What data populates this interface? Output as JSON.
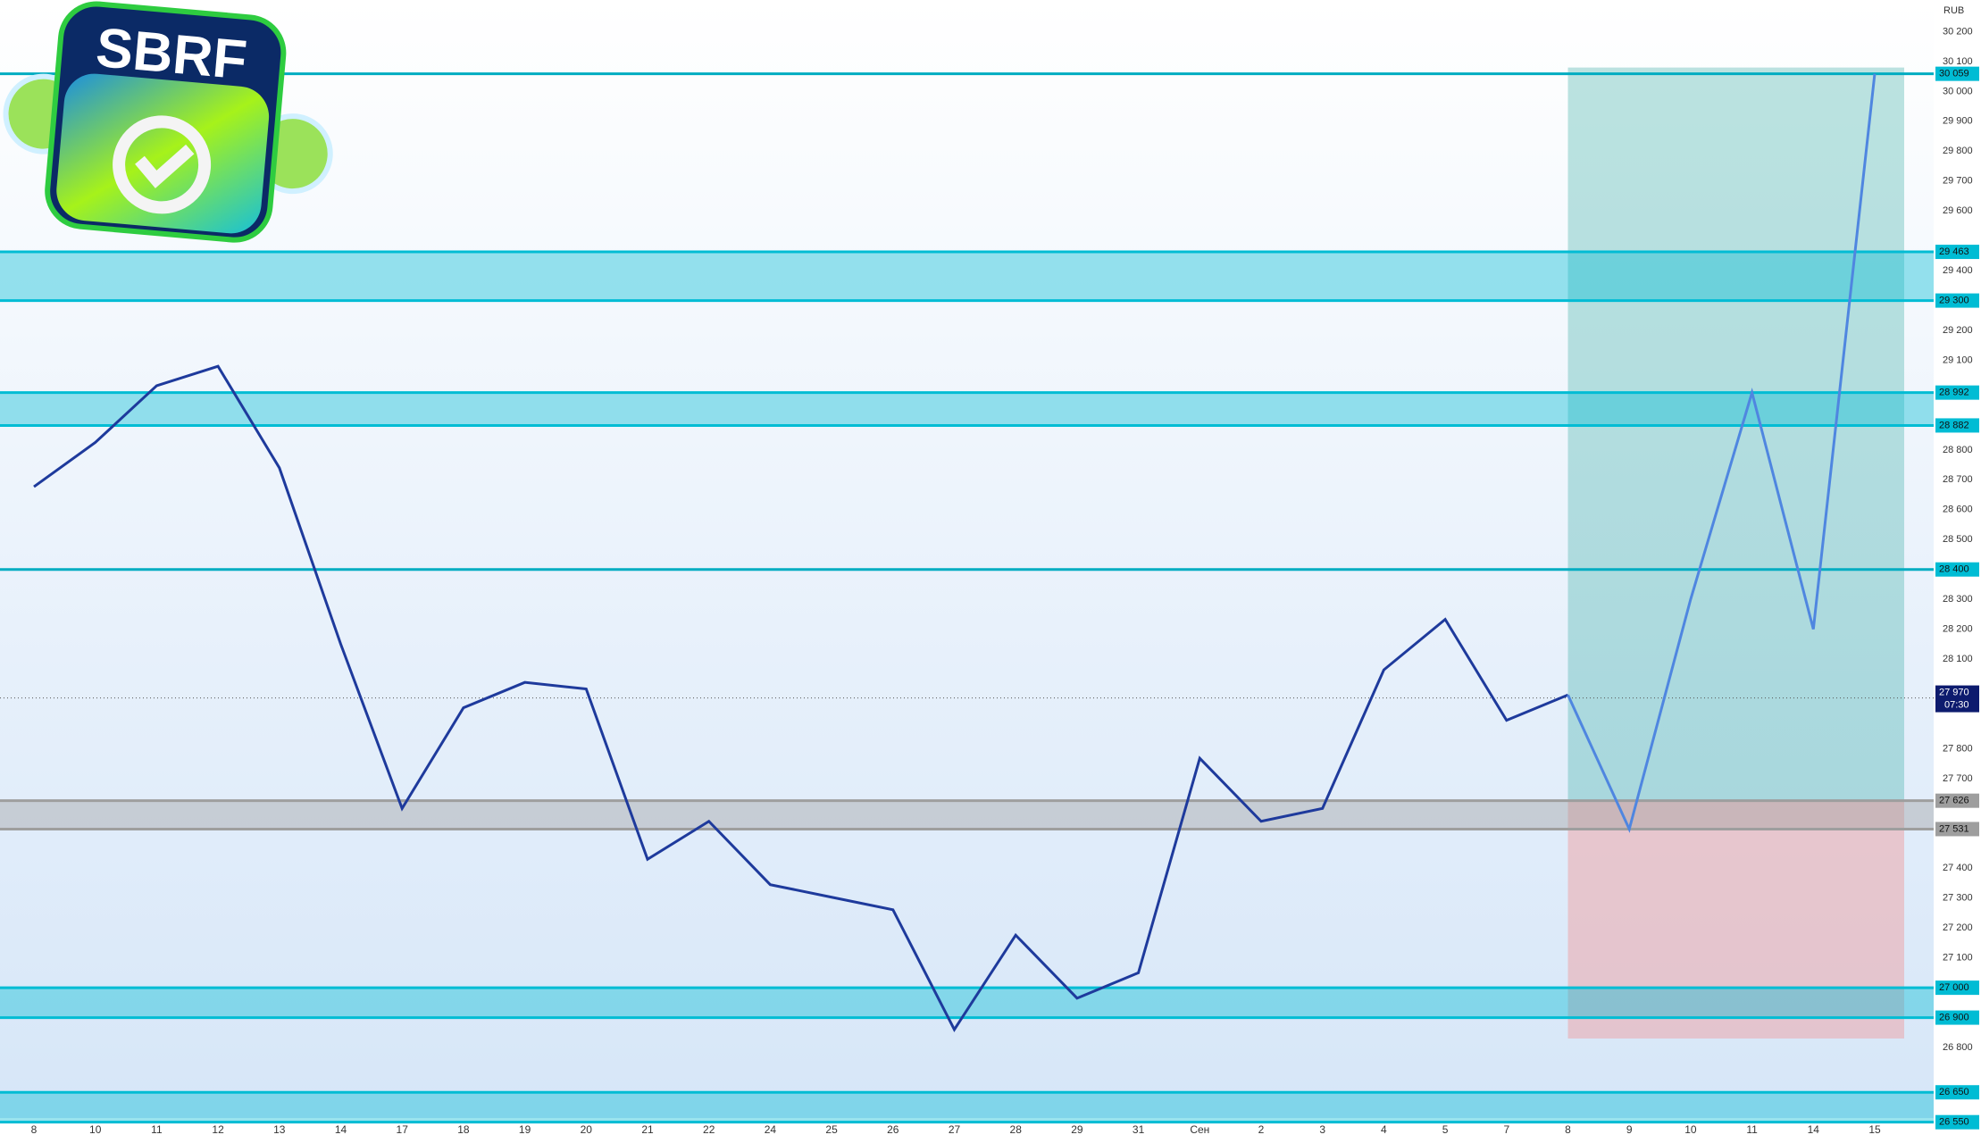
{
  "logo": "SBRF",
  "chart_data": {
    "type": "line",
    "currency": "RUB",
    "categories": [
      "8",
      "10",
      "11",
      "12",
      "13",
      "14",
      "17",
      "18",
      "19",
      "20",
      "21",
      "22",
      "24",
      "25",
      "26",
      "27",
      "28",
      "29",
      "31",
      "Сен",
      "2",
      "3",
      "4",
      "5",
      "7",
      "8",
      "9",
      "10",
      "11",
      "14",
      "15"
    ],
    "series": [
      {
        "color": "#1e3a9c",
        "values": [
          28677,
          28825,
          29015,
          29080,
          28740,
          28150,
          27600,
          27937,
          28022,
          28000,
          27430,
          27557,
          27345,
          27303,
          27261,
          26860,
          27176,
          26965,
          27050,
          27768,
          27557,
          27600,
          28064,
          28233,
          27895,
          27980,
          null,
          null,
          null,
          null,
          null
        ]
      },
      {
        "color": "#4f86e0",
        "values": [
          null,
          null,
          null,
          null,
          null,
          null,
          null,
          null,
          null,
          null,
          null,
          null,
          null,
          null,
          null,
          null,
          null,
          null,
          null,
          null,
          null,
          null,
          null,
          null,
          null,
          27980,
          27531,
          28300,
          28992,
          28200,
          30059
        ]
      }
    ],
    "ylim": [
      26564,
      30306
    ],
    "yticks": [
      {
        "value": 26800,
        "label": "26 800"
      },
      {
        "value": 27100,
        "label": "27 100"
      },
      {
        "value": 27200,
        "label": "27 200"
      },
      {
        "value": 27300,
        "label": "27 300"
      },
      {
        "value": 27400,
        "label": "27 400"
      },
      {
        "value": 27700,
        "label": "27 700"
      },
      {
        "value": 27800,
        "label": "27 800"
      },
      {
        "value": 28100,
        "label": "28 100"
      },
      {
        "value": 28200,
        "label": "28 200"
      },
      {
        "value": 28300,
        "label": "28 300"
      },
      {
        "value": 28500,
        "label": "28 500"
      },
      {
        "value": 28600,
        "label": "28 600"
      },
      {
        "value": 28700,
        "label": "28 700"
      },
      {
        "value": 28800,
        "label": "28 800"
      },
      {
        "value": 29100,
        "label": "29 100"
      },
      {
        "value": 29200,
        "label": "29 200"
      },
      {
        "value": 29400,
        "label": "29 400"
      },
      {
        "value": 29600,
        "label": "29 600"
      },
      {
        "value": 29700,
        "label": "29 700"
      },
      {
        "value": 29800,
        "label": "29 800"
      },
      {
        "value": 29900,
        "label": "29 900"
      },
      {
        "value": 30000,
        "label": "30 000"
      },
      {
        "value": 30100,
        "label": "30 100"
      },
      {
        "value": 30200,
        "label": "30 200"
      }
    ],
    "levels": [
      {
        "value": 30059,
        "label": "30 059"
      },
      {
        "value": 28400,
        "label": "28 400"
      }
    ],
    "zones": [
      {
        "color": "#00bcd4",
        "top": {
          "value": 29463,
          "label": "29 463"
        },
        "bottom": {
          "value": 29300,
          "label": "29 300"
        }
      },
      {
        "color": "#00bcd4",
        "top": {
          "value": 28992,
          "label": "28 992"
        },
        "bottom": {
          "value": 28882,
          "label": "28 882"
        }
      },
      {
        "color": "#9e9e9e",
        "top": {
          "value": 27626,
          "label": "27 626"
        },
        "bottom": {
          "value": 27531,
          "label": "27 531"
        }
      },
      {
        "color": "#00bcd4",
        "top": {
          "value": 27000,
          "label": "27 000"
        },
        "bottom": {
          "value": 26900,
          "label": "26 900"
        }
      },
      {
        "color": "#00bcd4",
        "top": {
          "value": 26650,
          "label": "26 650"
        },
        "bottom": {
          "value": 26550,
          "label": "26 550"
        }
      }
    ],
    "position": {
      "target": 30080,
      "entry": 27626,
      "stop": 26830
    },
    "current": {
      "value": 27970,
      "label": "27 970",
      "time": "07:30"
    }
  }
}
